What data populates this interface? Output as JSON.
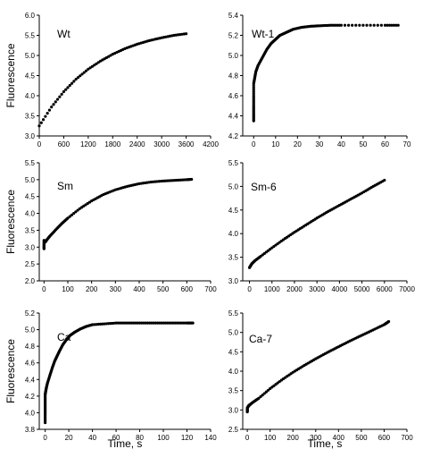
{
  "chart_data": [
    {
      "type": "scatter",
      "label": "Wt",
      "ylabel": "Fluorescence",
      "xlabel": "",
      "xlim": [
        0,
        4200
      ],
      "ylim": [
        3.0,
        6.0
      ],
      "xticks": [
        "0",
        "600",
        "1200",
        "1800",
        "2400",
        "3000",
        "3600",
        "4200"
      ],
      "yticks": [
        "3.0",
        "3.5",
        "4.0",
        "4.5",
        "5.0",
        "5.5",
        "6.0"
      ],
      "series": [
        {
          "x": [
            0,
            300,
            600,
            900,
            1200,
            1500,
            1800,
            2100,
            2400,
            2700,
            3000,
            3300,
            3600
          ],
          "y": [
            3.25,
            3.72,
            4.1,
            4.41,
            4.66,
            4.86,
            5.03,
            5.17,
            5.28,
            5.37,
            5.44,
            5.5,
            5.54
          ]
        }
      ]
    },
    {
      "type": "scatter",
      "label": "Wt-1",
      "ylabel": "",
      "xlabel": "",
      "xlim": [
        -5,
        70
      ],
      "ylim": [
        4.2,
        5.4
      ],
      "xticks": [
        "0",
        "10",
        "20",
        "30",
        "40",
        "50",
        "60",
        "70"
      ],
      "yticks": [
        "4.2",
        "4.4",
        "4.6",
        "4.8",
        "5.0",
        "5.2",
        "5.4"
      ],
      "series": [
        {
          "x": [
            0,
            0,
            0,
            0,
            0,
            0.5,
            1,
            2,
            4,
            6,
            8,
            10,
            12,
            15,
            18,
            22,
            26,
            30,
            35,
            40,
            50,
            60,
            66
          ],
          "y": [
            4.35,
            4.42,
            4.5,
            4.6,
            4.72,
            4.78,
            4.84,
            4.9,
            4.98,
            5.06,
            5.12,
            5.16,
            5.2,
            5.23,
            5.26,
            5.28,
            5.29,
            5.295,
            5.3,
            5.3,
            5.3,
            5.3,
            5.3
          ]
        }
      ]
    },
    {
      "type": "scatter",
      "label": "Sm",
      "ylabel": "Fluorescence",
      "xlabel": "",
      "xlim": [
        -20,
        700
      ],
      "ylim": [
        2.0,
        5.5
      ],
      "xticks": [
        "0",
        "100",
        "200",
        "300",
        "400",
        "500",
        "600",
        "700"
      ],
      "yticks": [
        "2.0",
        "2.5",
        "3.0",
        "3.5",
        "4.0",
        "4.5",
        "5.0",
        "5.5"
      ],
      "series": [
        {
          "x": [
            0,
            0,
            0,
            5,
            10,
            25,
            50,
            75,
            100,
            150,
            200,
            250,
            300,
            350,
            400,
            450,
            500,
            550,
            600,
            620
          ],
          "y": [
            2.95,
            3.05,
            3.2,
            3.15,
            3.2,
            3.33,
            3.52,
            3.7,
            3.86,
            4.14,
            4.37,
            4.56,
            4.7,
            4.8,
            4.88,
            4.93,
            4.96,
            4.98,
            5.0,
            5.01
          ]
        }
      ]
    },
    {
      "type": "scatter",
      "label": "Sm-6",
      "ylabel": "",
      "xlabel": "",
      "xlim": [
        -300,
        7000
      ],
      "ylim": [
        3.0,
        5.5
      ],
      "xticks": [
        "0",
        "1000",
        "2000",
        "3000",
        "4000",
        "5000",
        "6000",
        "7000"
      ],
      "yticks": [
        "3.0",
        "3.5",
        "4.0",
        "4.5",
        "5.0",
        "5.5"
      ],
      "series": [
        {
          "x": [
            0,
            100,
            250,
            500,
            1000,
            1500,
            2000,
            2500,
            3000,
            3500,
            4000,
            4500,
            5000,
            5500,
            6000
          ],
          "y": [
            3.28,
            3.36,
            3.43,
            3.52,
            3.7,
            3.87,
            4.03,
            4.18,
            4.33,
            4.47,
            4.6,
            4.73,
            4.86,
            5.0,
            5.13
          ]
        }
      ]
    },
    {
      "type": "scatter",
      "label": "Ca",
      "ylabel": "Fluorescence",
      "xlabel": "Time, s",
      "xlim": [
        -5,
        140
      ],
      "ylim": [
        3.8,
        5.2
      ],
      "xticks": [
        "0",
        "20",
        "40",
        "60",
        "80",
        "100",
        "120",
        "140"
      ],
      "yticks": [
        "3.8",
        "4.0",
        "4.2",
        "4.4",
        "4.6",
        "4.8",
        "5.0",
        "5.2"
      ],
      "series": [
        {
          "x": [
            0,
            0,
            0,
            0,
            0,
            0.5,
            1,
            2,
            4,
            6,
            8,
            10,
            12,
            15,
            18,
            21,
            25,
            30,
            35,
            40,
            50,
            60,
            70,
            80,
            90,
            100,
            110,
            120,
            125
          ],
          "y": [
            3.88,
            3.98,
            4.06,
            4.14,
            4.22,
            4.26,
            4.3,
            4.36,
            4.45,
            4.54,
            4.62,
            4.68,
            4.74,
            4.82,
            4.88,
            4.93,
            4.97,
            5.01,
            5.04,
            5.06,
            5.07,
            5.08,
            5.08,
            5.08,
            5.08,
            5.08,
            5.08,
            5.08,
            5.08
          ]
        }
      ]
    },
    {
      "type": "scatter",
      "label": "Ca-7",
      "ylabel": "",
      "xlabel": "Time, s",
      "xlim": [
        -20,
        700
      ],
      "ylim": [
        2.5,
        5.5
      ],
      "xticks": [
        "0",
        "100",
        "200",
        "300",
        "400",
        "500",
        "600",
        "700"
      ],
      "yticks": [
        "2.5",
        "3.0",
        "3.5",
        "4.0",
        "4.5",
        "5.0",
        "5.5"
      ],
      "series": [
        {
          "x": [
            0,
            0,
            0,
            5,
            10,
            25,
            50,
            100,
            150,
            200,
            250,
            300,
            350,
            400,
            450,
            500,
            550,
            600,
            620
          ],
          "y": [
            2.95,
            3.0,
            3.05,
            3.1,
            3.13,
            3.2,
            3.3,
            3.55,
            3.77,
            3.97,
            4.15,
            4.32,
            4.48,
            4.63,
            4.78,
            4.92,
            5.06,
            5.2,
            5.28
          ]
        }
      ]
    }
  ]
}
